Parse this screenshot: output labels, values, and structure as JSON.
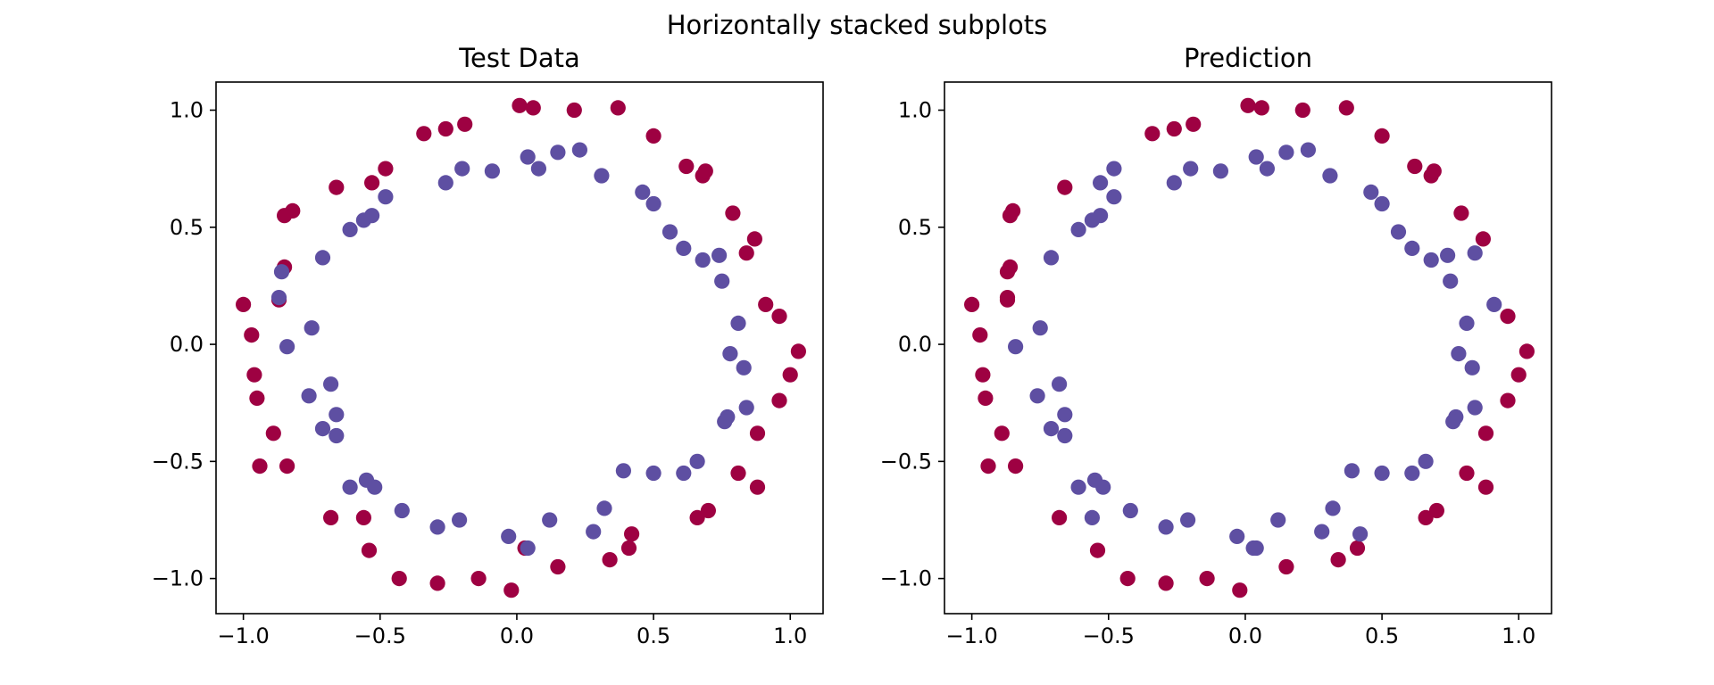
{
  "figure": {
    "suptitle": "Horizontally stacked subplots"
  },
  "colors": {
    "outer": "#9e0142",
    "inner": "#5e4fa2",
    "axes": "#000000"
  },
  "chart_data": [
    {
      "type": "scatter",
      "title": "Test Data",
      "xlim": [
        -1.1,
        1.12
      ],
      "ylim": [
        -1.15,
        1.12
      ],
      "xticks": [
        -1.0,
        -0.5,
        0.0,
        0.5,
        1.0
      ],
      "yticks": [
        -1.0,
        -0.5,
        0.0,
        0.5,
        1.0
      ],
      "xtick_labels": [
        "−1.0",
        "−0.5",
        "0.0",
        "0.5",
        "1.0"
      ],
      "ytick_labels": [
        "−1.0",
        "−0.5",
        "0.0",
        "0.5",
        "1.0"
      ],
      "grid": false,
      "points": {
        "outer": [
          [
            0.01,
            1.02
          ],
          [
            0.06,
            1.01
          ],
          [
            0.21,
            1.0
          ],
          [
            0.37,
            1.01
          ],
          [
            -0.19,
            0.94
          ],
          [
            -0.26,
            0.92
          ],
          [
            -0.34,
            0.9
          ],
          [
            0.5,
            0.89
          ],
          [
            0.62,
            0.76
          ],
          [
            0.68,
            0.72
          ],
          [
            0.69,
            0.74
          ],
          [
            -0.48,
            0.75
          ],
          [
            -0.53,
            0.69
          ],
          [
            -0.66,
            0.67
          ],
          [
            0.79,
            0.56
          ],
          [
            -0.82,
            0.57
          ],
          [
            -0.85,
            0.55
          ],
          [
            0.87,
            0.45
          ],
          [
            0.84,
            0.39
          ],
          [
            -0.85,
            0.33
          ],
          [
            -0.87,
            0.19
          ],
          [
            0.91,
            0.17
          ],
          [
            -1.0,
            0.17
          ],
          [
            0.96,
            0.12
          ],
          [
            -0.97,
            0.04
          ],
          [
            1.03,
            -0.03
          ],
          [
            -0.96,
            -0.13
          ],
          [
            1.0,
            -0.13
          ],
          [
            -0.95,
            -0.23
          ],
          [
            0.96,
            -0.24
          ],
          [
            -0.89,
            -0.38
          ],
          [
            0.88,
            -0.38
          ],
          [
            -0.94,
            -0.52
          ],
          [
            -0.84,
            -0.52
          ],
          [
            0.81,
            -0.55
          ],
          [
            0.88,
            -0.61
          ],
          [
            0.7,
            -0.71
          ],
          [
            0.66,
            -0.74
          ],
          [
            -0.68,
            -0.74
          ],
          [
            -0.56,
            -0.74
          ],
          [
            0.42,
            -0.81
          ],
          [
            0.41,
            -0.87
          ],
          [
            -0.54,
            -0.88
          ],
          [
            0.03,
            -0.87
          ],
          [
            0.34,
            -0.92
          ],
          [
            0.15,
            -0.95
          ],
          [
            -0.43,
            -1.0
          ],
          [
            -0.14,
            -1.0
          ],
          [
            -0.29,
            -1.02
          ],
          [
            -0.02,
            -1.05
          ]
        ],
        "inner": [
          [
            0.04,
            0.8
          ],
          [
            0.08,
            0.75
          ],
          [
            0.15,
            0.82
          ],
          [
            0.23,
            0.83
          ],
          [
            -0.09,
            0.74
          ],
          [
            -0.2,
            0.75
          ],
          [
            -0.26,
            0.69
          ],
          [
            0.31,
            0.72
          ],
          [
            0.46,
            0.65
          ],
          [
            0.5,
            0.6
          ],
          [
            -0.48,
            0.63
          ],
          [
            -0.53,
            0.55
          ],
          [
            -0.56,
            0.53
          ],
          [
            -0.61,
            0.49
          ],
          [
            0.56,
            0.48
          ],
          [
            0.61,
            0.41
          ],
          [
            0.68,
            0.36
          ],
          [
            0.74,
            0.38
          ],
          [
            -0.71,
            0.37
          ],
          [
            -0.86,
            0.31
          ],
          [
            0.75,
            0.27
          ],
          [
            -0.87,
            0.2
          ],
          [
            0.81,
            0.09
          ],
          [
            -0.75,
            0.07
          ],
          [
            -0.84,
            -0.01
          ],
          [
            0.78,
            -0.04
          ],
          [
            0.83,
            -0.1
          ],
          [
            -0.68,
            -0.17
          ],
          [
            -0.76,
            -0.22
          ],
          [
            0.84,
            -0.27
          ],
          [
            -0.66,
            -0.3
          ],
          [
            0.77,
            -0.31
          ],
          [
            -0.71,
            -0.36
          ],
          [
            0.76,
            -0.33
          ],
          [
            -0.66,
            -0.39
          ],
          [
            0.39,
            -0.54
          ],
          [
            0.5,
            -0.55
          ],
          [
            0.61,
            -0.55
          ],
          [
            0.66,
            -0.5
          ],
          [
            -0.55,
            -0.58
          ],
          [
            -0.61,
            -0.61
          ],
          [
            -0.52,
            -0.61
          ],
          [
            -0.42,
            -0.71
          ],
          [
            0.32,
            -0.7
          ],
          [
            -0.21,
            -0.75
          ],
          [
            0.12,
            -0.75
          ],
          [
            -0.29,
            -0.78
          ],
          [
            0.28,
            -0.8
          ],
          [
            -0.03,
            -0.82
          ],
          [
            0.04,
            -0.87
          ]
        ]
      }
    },
    {
      "type": "scatter",
      "title": "Prediction",
      "xlim": [
        -1.1,
        1.12
      ],
      "ylim": [
        -1.15,
        1.12
      ],
      "xticks": [
        -1.0,
        -0.5,
        0.0,
        0.5,
        1.0
      ],
      "yticks": [
        -1.0,
        -0.5,
        0.0,
        0.5,
        1.0
      ],
      "xtick_labels": [
        "−1.0",
        "−0.5",
        "0.0",
        "0.5",
        "1.0"
      ],
      "ytick_labels": [
        "−1.0",
        "−0.5",
        "0.0",
        "0.5",
        "1.0"
      ],
      "grid": false,
      "points": {
        "outer": [
          [
            0.01,
            1.02
          ],
          [
            0.06,
            1.01
          ],
          [
            0.21,
            1.0
          ],
          [
            0.37,
            1.01
          ],
          [
            -0.19,
            0.94
          ],
          [
            -0.26,
            0.92
          ],
          [
            -0.34,
            0.9
          ],
          [
            0.5,
            0.89
          ],
          [
            0.62,
            0.76
          ],
          [
            0.68,
            0.72
          ],
          [
            0.69,
            0.74
          ],
          [
            -0.66,
            0.67
          ],
          [
            0.79,
            0.56
          ],
          [
            -0.85,
            0.57
          ],
          [
            -0.86,
            0.55
          ],
          [
            0.87,
            0.45
          ],
          [
            -0.86,
            0.33
          ],
          [
            -0.87,
            0.31
          ],
          [
            -0.87,
            0.2
          ],
          [
            -0.87,
            0.19
          ],
          [
            -1.0,
            0.17
          ],
          [
            0.96,
            0.12
          ],
          [
            -0.97,
            0.04
          ],
          [
            1.03,
            -0.03
          ],
          [
            -0.96,
            -0.13
          ],
          [
            1.0,
            -0.13
          ],
          [
            -0.95,
            -0.23
          ],
          [
            0.96,
            -0.24
          ],
          [
            -0.89,
            -0.38
          ],
          [
            0.88,
            -0.38
          ],
          [
            -0.94,
            -0.52
          ],
          [
            -0.84,
            -0.52
          ],
          [
            0.81,
            -0.55
          ],
          [
            0.88,
            -0.61
          ],
          [
            0.7,
            -0.71
          ],
          [
            0.66,
            -0.74
          ],
          [
            -0.68,
            -0.74
          ],
          [
            0.41,
            -0.87
          ],
          [
            -0.54,
            -0.88
          ],
          [
            0.34,
            -0.92
          ],
          [
            0.15,
            -0.95
          ],
          [
            -0.43,
            -1.0
          ],
          [
            -0.14,
            -1.0
          ],
          [
            -0.29,
            -1.02
          ],
          [
            -0.02,
            -1.05
          ]
        ],
        "inner": [
          [
            0.04,
            0.8
          ],
          [
            0.08,
            0.75
          ],
          [
            0.15,
            0.82
          ],
          [
            0.23,
            0.83
          ],
          [
            -0.09,
            0.74
          ],
          [
            -0.2,
            0.75
          ],
          [
            -0.26,
            0.69
          ],
          [
            -0.48,
            0.75
          ],
          [
            0.31,
            0.72
          ],
          [
            -0.53,
            0.69
          ],
          [
            0.46,
            0.65
          ],
          [
            0.5,
            0.6
          ],
          [
            -0.48,
            0.63
          ],
          [
            -0.53,
            0.55
          ],
          [
            -0.56,
            0.53
          ],
          [
            -0.61,
            0.49
          ],
          [
            0.56,
            0.48
          ],
          [
            0.61,
            0.41
          ],
          [
            0.68,
            0.36
          ],
          [
            0.74,
            0.38
          ],
          [
            0.84,
            0.39
          ],
          [
            -0.71,
            0.37
          ],
          [
            0.75,
            0.27
          ],
          [
            0.91,
            0.17
          ],
          [
            0.81,
            0.09
          ],
          [
            -0.75,
            0.07
          ],
          [
            -0.84,
            -0.01
          ],
          [
            0.78,
            -0.04
          ],
          [
            0.83,
            -0.1
          ],
          [
            -0.68,
            -0.17
          ],
          [
            -0.76,
            -0.22
          ],
          [
            0.84,
            -0.27
          ],
          [
            -0.66,
            -0.3
          ],
          [
            0.77,
            -0.31
          ],
          [
            -0.71,
            -0.36
          ],
          [
            0.76,
            -0.33
          ],
          [
            -0.66,
            -0.39
          ],
          [
            0.39,
            -0.54
          ],
          [
            0.5,
            -0.55
          ],
          [
            0.61,
            -0.55
          ],
          [
            0.66,
            -0.5
          ],
          [
            -0.55,
            -0.58
          ],
          [
            -0.61,
            -0.61
          ],
          [
            -0.52,
            -0.61
          ],
          [
            -0.56,
            -0.74
          ],
          [
            -0.42,
            -0.71
          ],
          [
            0.32,
            -0.7
          ],
          [
            -0.21,
            -0.75
          ],
          [
            0.12,
            -0.75
          ],
          [
            -0.29,
            -0.78
          ],
          [
            0.28,
            -0.8
          ],
          [
            0.42,
            -0.81
          ],
          [
            -0.03,
            -0.82
          ],
          [
            0.04,
            -0.87
          ],
          [
            0.03,
            -0.87
          ]
        ]
      }
    }
  ]
}
